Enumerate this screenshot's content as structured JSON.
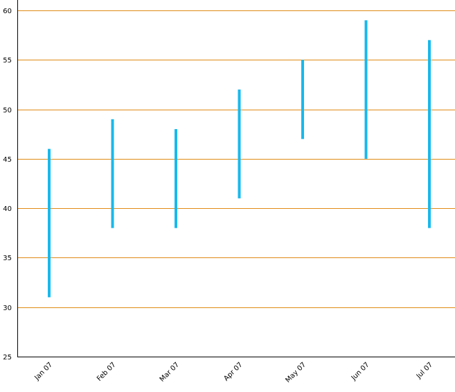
{
  "chart_data": {
    "type": "range-bar",
    "title": "",
    "xlabel": "",
    "ylabel": "",
    "categories": [
      "Jan 07",
      "Feb 07",
      "Mar 07",
      "Apr 07",
      "May 07",
      "Jun 07",
      "Jul 07"
    ],
    "series": [
      {
        "low": [
          31,
          38,
          38,
          41,
          47,
          45,
          38
        ],
        "high": [
          46,
          49,
          48,
          52,
          55,
          59,
          57
        ]
      }
    ],
    "ylim": [
      25,
      60
    ],
    "yticks": [
      "25",
      "30",
      "35",
      "40",
      "45",
      "50",
      "55",
      "60"
    ],
    "grid": true,
    "colors": {
      "bar": "#18b9ec",
      "grid": "#e08a14",
      "axis": "#000000"
    }
  }
}
